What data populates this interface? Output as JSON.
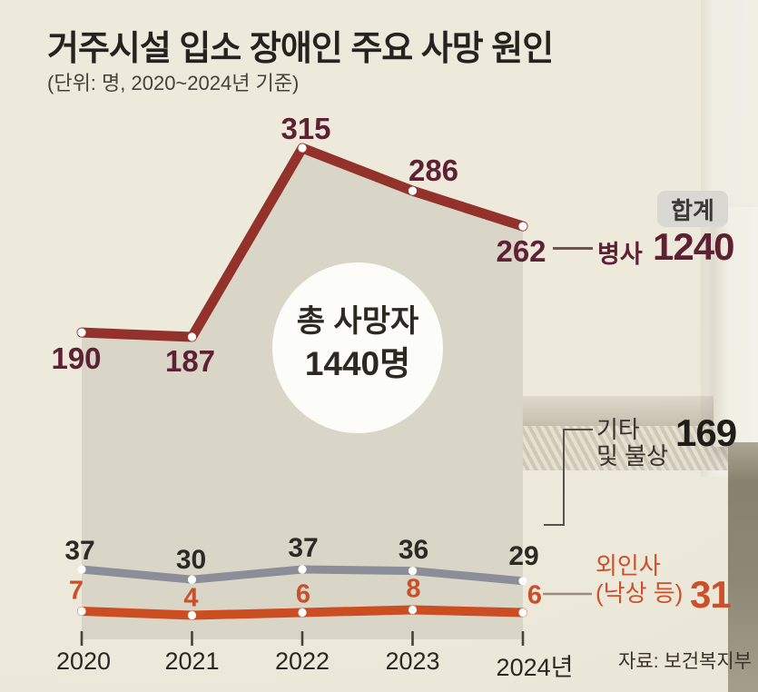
{
  "title": "거주시설 입소 장애인 주요 사망 원인",
  "subtitle": "(단위: 명, 2020~2024년 기준)",
  "source": "자료: 보건복지부",
  "center_annotation": {
    "line1": "총 사망자",
    "line2": "1440명"
  },
  "legend": {
    "total_label": "합계",
    "byeongsa": {
      "label": "병사",
      "total": "1240"
    },
    "gita": {
      "line1": "기타",
      "line2": "및 불상",
      "total": "169"
    },
    "oeinsa": {
      "line1": "외인사",
      "line2": "(낙상 등)",
      "total": "31"
    }
  },
  "colors": {
    "background": "#ede9db",
    "area_fill": "#d8d4c5",
    "disease_line": "#93322a",
    "disease_text": "#5e2133",
    "other_line": "#8b8e98",
    "other_text": "#2d2a26",
    "external_line": "#cb4e23",
    "external_text": "#c8502a",
    "badge_bg": "#d9d8d3",
    "tick": "#47423a",
    "circle_fill": "#fcfcf9"
  },
  "chart_data": {
    "type": "line",
    "categories": [
      "2020",
      "2021",
      "2022",
      "2023",
      "2024년"
    ],
    "series": [
      {
        "name": "병사",
        "values": [
          190,
          187,
          315,
          286,
          262
        ],
        "total": 1240,
        "color": "#93322a"
      },
      {
        "name": "기타 및 불상",
        "values": [
          37,
          30,
          37,
          36,
          29
        ],
        "total": 169,
        "color": "#8b8e98"
      },
      {
        "name": "외인사(낙상 등)",
        "values": [
          7,
          4,
          6,
          8,
          6
        ],
        "total": 31,
        "color": "#cb4e23"
      }
    ],
    "grand_total_label": "총 사망자 1440명",
    "totals_header": "합계",
    "grid": false,
    "legend_position": "right",
    "area_under_first_series": true
  }
}
